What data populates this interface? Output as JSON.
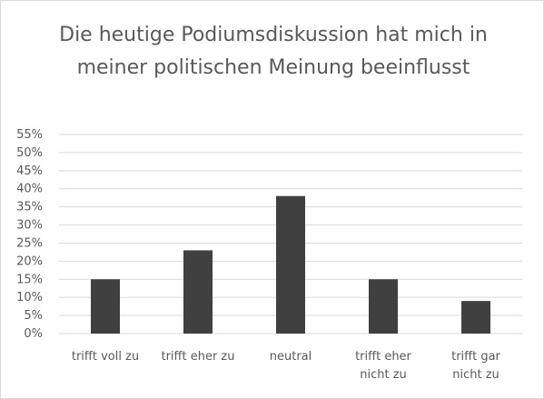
{
  "chart_data": {
    "type": "bar",
    "title": "Die heutige Podiumsdiskussion hat mich in meiner politischen Meinung beeinflusst",
    "categories": [
      [
        "trifft voll zu"
      ],
      [
        "trifft eher zu"
      ],
      [
        "neutral"
      ],
      [
        "trifft eher",
        "nicht zu"
      ],
      [
        "trifft gar",
        "nicht zu"
      ]
    ],
    "values": [
      0.15,
      0.23,
      0.38,
      0.15,
      0.09
    ],
    "y_ticks": [
      "0%",
      "5%",
      "10%",
      "15%",
      "20%",
      "25%",
      "30%",
      "35%",
      "40%",
      "45%",
      "50%",
      "55%"
    ],
    "ylim": [
      0,
      0.55
    ],
    "grid": true,
    "bar_color": "#404040",
    "grid_color": "#d9d9d9",
    "text_color": "#595959"
  }
}
